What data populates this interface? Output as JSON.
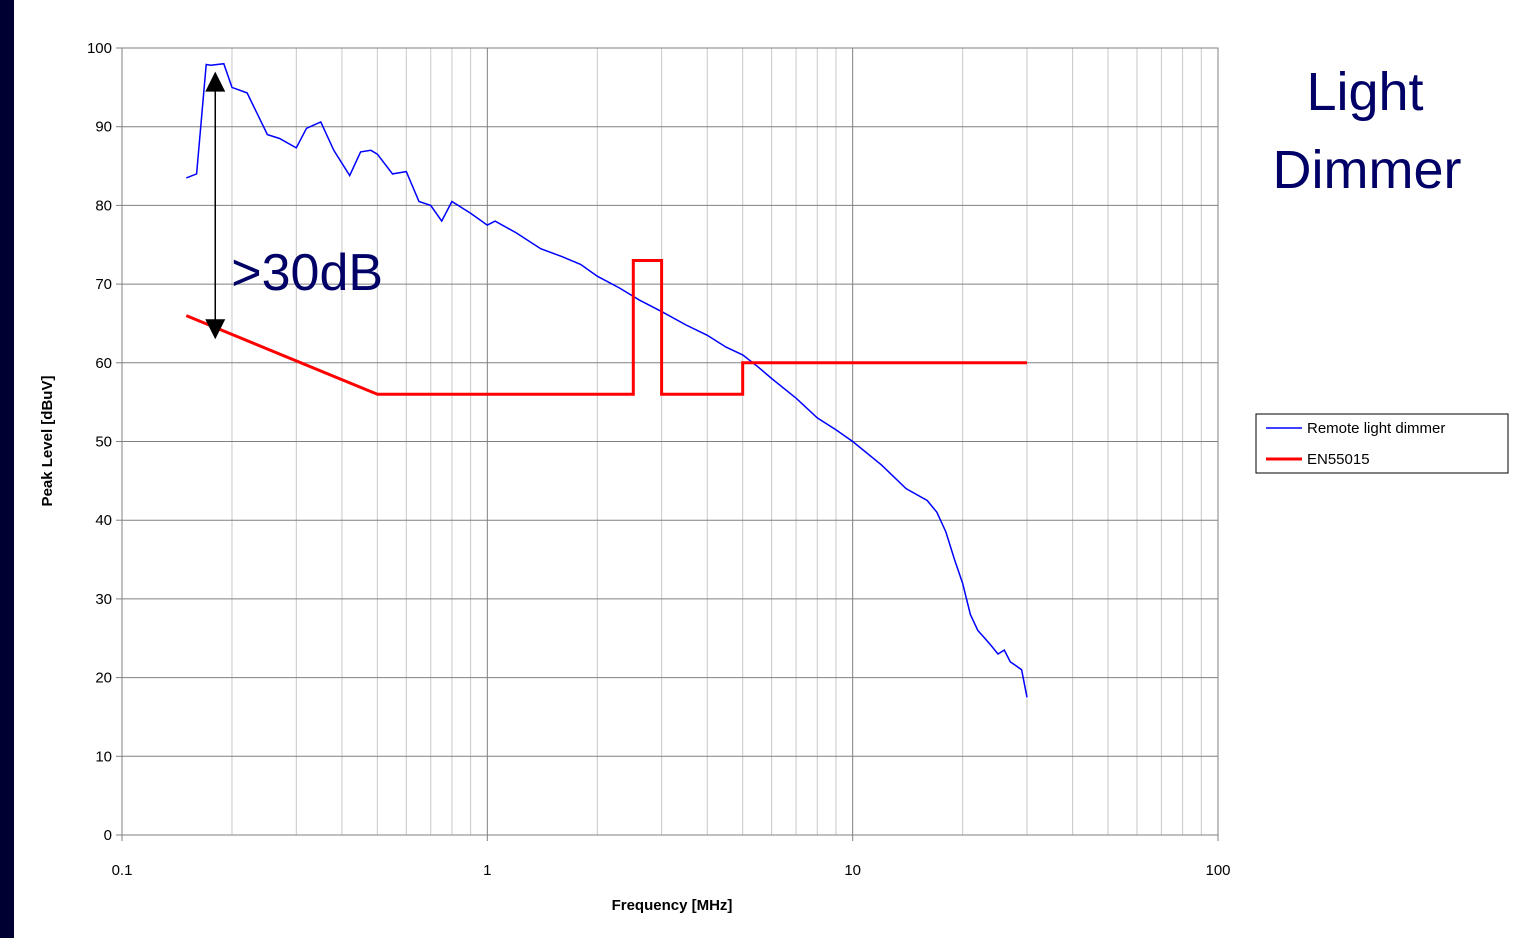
{
  "chart_data": {
    "type": "line",
    "title_lines": [
      "Light",
      "Dimmer"
    ],
    "xlabel": "Frequency [MHz]",
    "ylabel": "Peak Level [dBuV]",
    "xscale": "log",
    "xlim": [
      0.1,
      100
    ],
    "ylim": [
      0,
      100
    ],
    "x_ticks": [
      "0.1",
      "1",
      "10",
      "100"
    ],
    "y_ticks": [
      "0",
      "10",
      "20",
      "30",
      "40",
      "50",
      "60",
      "70",
      "80",
      "90",
      "100"
    ],
    "grid": true,
    "legend_position": "right",
    "annotation": ">30dB",
    "series": [
      {
        "name": "Remote light dimmer",
        "color": "#0000ff",
        "x": [
          0.15,
          0.16,
          0.17,
          0.175,
          0.19,
          0.2,
          0.22,
          0.25,
          0.27,
          0.3,
          0.32,
          0.35,
          0.38,
          0.42,
          0.45,
          0.48,
          0.5,
          0.55,
          0.6,
          0.65,
          0.7,
          0.75,
          0.8,
          0.9,
          1.0,
          1.05,
          1.2,
          1.4,
          1.6,
          1.8,
          2.0,
          2.3,
          2.6,
          3.0,
          3.5,
          4.0,
          4.5,
          5.0,
          5.5,
          6.0,
          7.0,
          8.0,
          9.0,
          10.0,
          12.0,
          14.0,
          16.0,
          17.0,
          18.0,
          19.0,
          20.0,
          21.0,
          22.0,
          23.0,
          24.0,
          25.0,
          26.0,
          27.0,
          28.0,
          29.0,
          30.0
        ],
        "y": [
          83.5,
          84,
          97.9,
          97.8,
          98,
          95,
          94.3,
          89,
          88.5,
          87.3,
          89.8,
          90.6,
          87,
          83.8,
          86.8,
          87,
          86.5,
          84,
          84.3,
          80.5,
          80,
          78,
          80.5,
          79,
          77.5,
          78,
          76.5,
          74.5,
          73.5,
          72.5,
          71,
          69.5,
          68,
          66.5,
          64.8,
          63.5,
          62,
          61,
          59.5,
          58,
          55.5,
          53,
          51.5,
          50,
          47,
          44,
          42.5,
          41,
          38.5,
          35,
          32,
          28,
          26,
          25,
          24,
          23,
          23.5,
          22,
          21.5,
          21,
          17.5
        ]
      },
      {
        "name": "EN55015",
        "color": "#ff0000",
        "x": [
          0.15,
          0.5,
          2.51,
          2.51,
          3.0,
          3.0,
          5.0,
          5.0,
          30.0
        ],
        "y": [
          66,
          56,
          56,
          73,
          73,
          56,
          56,
          60,
          60
        ]
      }
    ]
  }
}
